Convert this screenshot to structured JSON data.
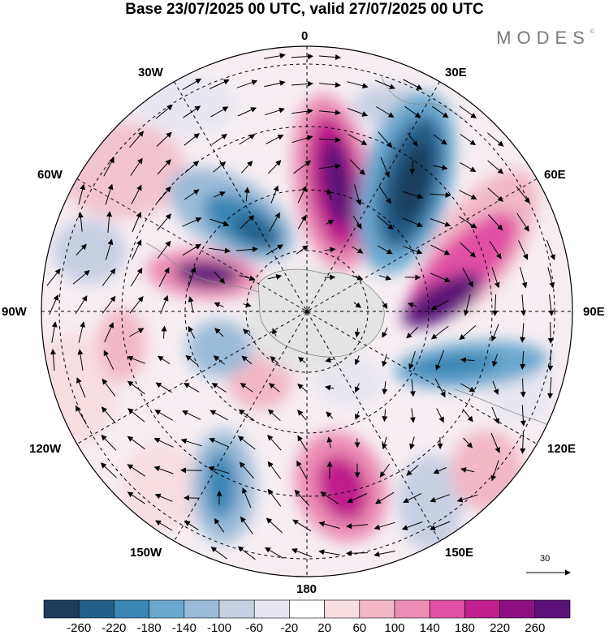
{
  "header": {
    "title": "Base 23/07/2025 00 UTC, valid 27/07/2025 00 UTC",
    "brand": "MODES",
    "brand_mark": "©"
  },
  "map": {
    "projection": "south-polar-stereographic",
    "longitude_labels": {
      "top": "0",
      "e30": "30E",
      "e60": "60E",
      "e90": "90E",
      "e120": "120E",
      "e150": "150E",
      "bottom": "180",
      "w150": "150W",
      "w120": "120W",
      "w90": "90W",
      "w60": "60W",
      "w30": "30W"
    },
    "vector_reference": "30",
    "colors": {
      "land_mask": "#e4e4e4",
      "outline": "#000000"
    }
  },
  "colorbar": {
    "colors": [
      "#1c3c5a",
      "#235f8a",
      "#3b86b5",
      "#6aa8cf",
      "#9bbcd9",
      "#c7cfe3",
      "#e7e6f1",
      "#ffffff",
      "#f8dde1",
      "#f2b8c6",
      "#ec8db4",
      "#e050a4",
      "#c01e8c",
      "#8f0f82",
      "#5a1278"
    ],
    "labels": [
      "-260",
      "-220",
      "-180",
      "-140",
      "-100",
      "-60",
      "-20",
      "20",
      "60",
      "100",
      "140",
      "180",
      "220",
      "260"
    ]
  }
}
